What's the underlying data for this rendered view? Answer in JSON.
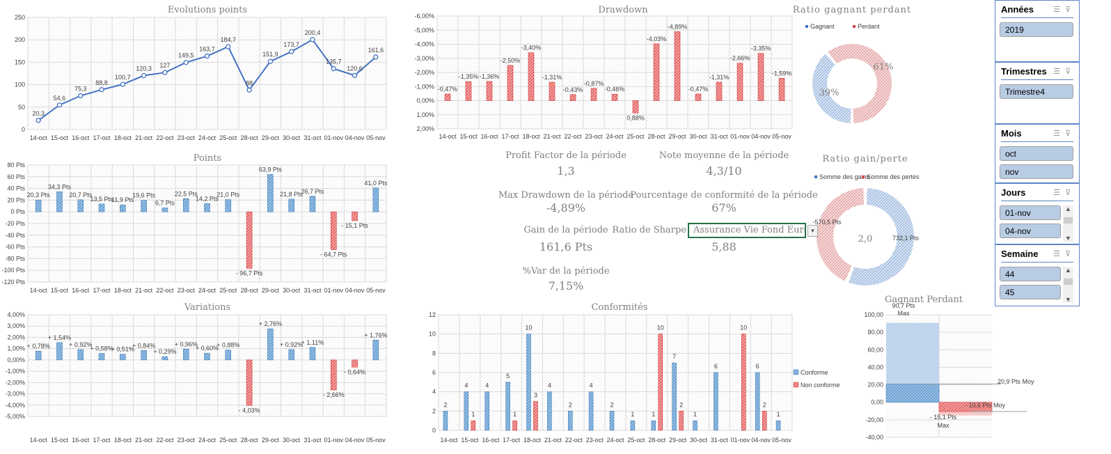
{
  "kpis": {
    "profit_factor": {
      "label": "Profit Factor de la période",
      "value": "1,3"
    },
    "note_moyenne": {
      "label": "Note moyenne de la période",
      "value": "4,3/10"
    },
    "max_drawdown": {
      "label": "Max Drawdown de la période",
      "value": "-4,89%"
    },
    "conformite": {
      "label": "Pourcentage de conformité de la période",
      "value": "67%"
    },
    "gain": {
      "label": "Gain de la période",
      "value": "161,6 Pts"
    },
    "sharpe": {
      "label": "Ratio de Sharpe",
      "selected": "Assurance Vie Fond Euros",
      "value": "5,88"
    },
    "var": {
      "label": "%Var de la période",
      "value": "7,15%"
    }
  },
  "slicers": [
    {
      "title": "Années",
      "items": [
        "2019"
      ]
    },
    {
      "title": "Trimestres",
      "items": [
        "Trimestre4"
      ]
    },
    {
      "title": "Mois",
      "items": [
        "oct",
        "nov"
      ]
    },
    {
      "title": "Jours",
      "items": [
        "01-nov",
        "04-nov"
      ]
    },
    {
      "title": "Semaine",
      "items": [
        "44",
        "45"
      ]
    }
  ],
  "colors": {
    "blue": "#2e75b6",
    "blue_light": "#9dc3e6",
    "red": "#c00000",
    "red_light": "#f4a6a6",
    "grid": "#d9d9d9",
    "slicer_item": "#b8cce4",
    "slicer_border": "#5b86c5",
    "selection": "#217346"
  },
  "chart_data": [
    {
      "type": "line",
      "title": "Evolutions points",
      "categories": [
        "14-oct",
        "15-oct",
        "16-oct",
        "17-oct",
        "18-oct",
        "21-oct",
        "22-oct",
        "23-oct",
        "24-oct",
        "25-oct",
        "28-oct",
        "29-oct",
        "30-oct",
        "31-oct",
        "01-nov",
        "04-nov",
        "05-nov"
      ],
      "values": [
        20.3,
        54.6,
        75.3,
        88.8,
        100.7,
        120.3,
        127,
        149.5,
        163.7,
        184.7,
        88,
        151.9,
        173.7,
        200.4,
        135.7,
        120.6,
        161.6
      ],
      "labels": [
        "20,3",
        "54,6",
        "75,3",
        "88,8",
        "100,7",
        "120,3",
        "127",
        "149,5",
        "163,7",
        "184,7",
        "88",
        "151,9",
        "173,7",
        "200,4",
        "135,7",
        "120,6",
        "161,6"
      ],
      "ylim": [
        0,
        250
      ],
      "yticks": [
        0,
        50,
        100,
        150,
        200,
        250
      ],
      "ytick_labels": [
        "0",
        "50",
        "100",
        "150",
        "200",
        "250"
      ],
      "grid": true
    },
    {
      "type": "bar",
      "title": "Drawdown",
      "y_reversed": true,
      "categories": [
        "14-oct",
        "15-oct",
        "16-oct",
        "17-oct",
        "18-oct",
        "21-oct",
        "22-oct",
        "23-oct",
        "24-oct",
        "25-oct",
        "28-oct",
        "29-oct",
        "30-oct",
        "31-oct",
        "01-nov",
        "04-nov",
        "05-nov"
      ],
      "values": [
        -0.47,
        -1.35,
        -1.36,
        -2.5,
        -3.4,
        -1.31,
        -0.43,
        -0.87,
        -0.46,
        0.88,
        -4.03,
        -4.89,
        -0.47,
        -1.31,
        -2.66,
        -3.35,
        -1.59
      ],
      "labels": [
        "-0,47%",
        "-1,35%",
        "-1,36%",
        "-2,50%",
        "-3,40%",
        "-1,31%",
        "-0,43%",
        "-0,87%",
        "-0,46%",
        "0,88%",
        "-4,03%",
        "-4,89%",
        "-0,47%",
        "-1,31%",
        "-2,66%",
        "-3,35%",
        "-1,59%"
      ],
      "ylim": [
        -6,
        2
      ],
      "yticks": [
        -6,
        -5,
        -4,
        -3,
        -2,
        -1,
        0,
        1,
        2
      ],
      "ytick_labels": [
        "-6,00%",
        "-5,00%",
        "-4,00%",
        "-3,00%",
        "-2,00%",
        "-1,00%",
        "0,00%",
        "1,00%",
        "2,00%"
      ],
      "grid": true
    },
    {
      "type": "bar",
      "title": "Points",
      "categories": [
        "14-oct",
        "15-oct",
        "16-oct",
        "17-oct",
        "18-oct",
        "21-oct",
        "22-oct",
        "23-oct",
        "24-oct",
        "25-oct",
        "28-oct",
        "29-oct",
        "30-oct",
        "31-oct",
        "01-nov",
        "04-nov",
        "05-nov"
      ],
      "values": [
        20.3,
        34.3,
        20.7,
        13.5,
        11.9,
        19.6,
        6.7,
        22.5,
        14.2,
        21.0,
        -96.7,
        63.9,
        21.8,
        26.7,
        -64.7,
        -15.1,
        41.0
      ],
      "labels": [
        "20,3 Pts",
        "34,3 Pts",
        "20,7 Pts",
        "13,5 Pts",
        "11,9 Pts",
        "19,6 Pts",
        "6,7 Pts",
        "22,5 Pts",
        "14,2 Pts",
        "21,0 Pts",
        "- 96,7 Pts",
        "63,9 Pts",
        "21,8 Pts",
        "26,7 Pts",
        "- 64,7 Pts",
        "- 15,1 Pts",
        "41,0 Pts"
      ],
      "ylim": [
        -120,
        80
      ],
      "yticks": [
        -120,
        -100,
        -80,
        -60,
        -40,
        -20,
        0,
        20,
        40,
        60,
        80
      ],
      "ytick_labels": [
        "-120 Pts",
        "-100 Pts",
        "-80 Pts",
        "-60 Pts",
        "-40 Pts",
        "-20 Pts",
        "0 Pts",
        "20 Pts",
        "40 Pts",
        "60 Pts",
        "80 Pts"
      ],
      "grid": true
    },
    {
      "type": "bar",
      "title": "Variations",
      "categories": [
        "14-oct",
        "15-oct",
        "16-oct",
        "17-oct",
        "18-oct",
        "21-oct",
        "22-oct",
        "23-oct",
        "24-oct",
        "25-oct",
        "28-oct",
        "29-oct",
        "30-oct",
        "31-oct",
        "01-nov",
        "04-nov",
        "05-nov"
      ],
      "values": [
        0.78,
        1.54,
        0.92,
        0.58,
        0.51,
        0.84,
        0.29,
        0.96,
        0.6,
        0.88,
        -4.03,
        2.76,
        0.92,
        1.11,
        -2.66,
        -0.64,
        1.76
      ],
      "labels": [
        "+ 0,78%",
        "+ 1,54%",
        "+ 0,92%",
        "+ 0,58%",
        "+ 0,51%",
        "+ 0,84%",
        "+ 0,29%",
        "+ 0,96%",
        "+ 0,60%",
        "+ 0,88%",
        "- 4,03%",
        "+ 2,76%",
        "+ 0,92%",
        "+ 1,11%",
        "- 2,66%",
        "- 0,64%",
        "+ 1,76%"
      ],
      "ylim": [
        -5,
        4
      ],
      "yticks": [
        -5,
        -4,
        -3,
        -2,
        -1,
        0,
        1,
        2,
        3,
        4
      ],
      "ytick_labels": [
        "-5,00%",
        "-4,00%",
        "-3,00%",
        "-2,00%",
        "-1,00%",
        "0,00%",
        "1,00%",
        "2,00%",
        "3,00%",
        "4,00%"
      ],
      "grid": true
    },
    {
      "type": "bar",
      "title": "Conformités",
      "legend": "right",
      "categories": [
        "14-oct",
        "15-oct",
        "16-oct",
        "17-oct",
        "18-oct",
        "21-oct",
        "22-oct",
        "23-oct",
        "24-oct",
        "25-oct",
        "28-oct",
        "29-oct",
        "30-oct",
        "31-oct",
        "01-nov",
        "04-nov",
        "05-nov"
      ],
      "series": [
        {
          "name": "Conforme",
          "values": [
            2,
            4,
            4,
            5,
            10,
            4,
            2,
            4,
            2,
            1,
            1,
            7,
            1,
            6,
            0,
            6,
            1
          ]
        },
        {
          "name": "Non conforme",
          "values": [
            0,
            1,
            0,
            1,
            3,
            0,
            0,
            0,
            0,
            0,
            10,
            2,
            0,
            0,
            10,
            2,
            0
          ]
        }
      ],
      "ylim": [
        0,
        12
      ],
      "yticks": [
        0,
        2,
        4,
        6,
        8,
        10,
        12
      ],
      "ytick_labels": [
        "0",
        "2",
        "4",
        "6",
        "8",
        "10",
        "12"
      ],
      "grid": true
    },
    {
      "type": "bar",
      "title": "Gagnant Perdant",
      "gagnant": {
        "max": 90.7,
        "moy": 20.9,
        "max_label": "90,7 Pts",
        "max_word": "Max",
        "moy_label": "20,9 Pts Moy"
      },
      "perdant": {
        "max": -15.1,
        "moy": -10.6,
        "max_label": "- 15,1 Pts",
        "max_word": "Max",
        "moy_label": "- 10,6 Pts Moy"
      },
      "ylim": [
        -40,
        100
      ],
      "yticks": [
        -40,
        -20,
        0,
        20,
        40,
        60,
        80,
        100
      ],
      "ytick_labels": [
        "-40,00",
        "-20,00",
        "0,00",
        "20,00",
        "40,00",
        "60,00",
        "80,00",
        "100,00"
      ],
      "grid": true
    },
    {
      "type": "pie",
      "title": "Ratio gagnant perdant",
      "legend": "top",
      "slices": [
        {
          "name": "Gagnant",
          "value": 39,
          "label": "39%"
        },
        {
          "name": "Perdant",
          "value": 61,
          "label": "61%"
        }
      ]
    },
    {
      "type": "pie",
      "title": "Ratio gain/perte",
      "legend": "top",
      "center_label": "2,0",
      "slices": [
        {
          "name": "Somme des gains",
          "value": 732.1,
          "label": "732,1 Pts"
        },
        {
          "name": "Somme des pertes",
          "value": 570.5,
          "label": "-570,5 Pts"
        }
      ]
    }
  ]
}
